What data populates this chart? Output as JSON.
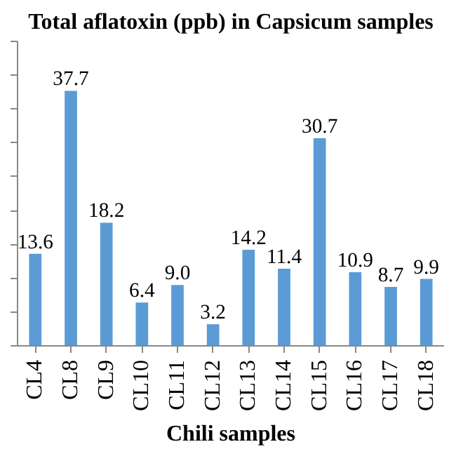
{
  "chart_data": {
    "type": "bar",
    "title": "Total aflatoxin (ppb) in Capsicum samples",
    "xlabel": "Chili samples",
    "categories": [
      "CL4",
      "CL8",
      "CL9",
      "CL10",
      "CL11",
      "CL12",
      "CL13",
      "CL14",
      "CL15",
      "CL16",
      "CL17",
      "CL18"
    ],
    "values": [
      13.6,
      37.7,
      18.2,
      6.4,
      9.0,
      3.2,
      14.2,
      11.4,
      30.7,
      10.9,
      8.7,
      9.9
    ],
    "value_labels": [
      "13.6",
      "37.7",
      "18.2",
      "6.4",
      "9.0",
      "3.2",
      "14.2",
      "11.4",
      "30.7",
      "10.9",
      "8.7",
      "9.9"
    ],
    "color": "#5b9bd5",
    "ylim": [
      0,
      45
    ],
    "yticks": [
      {
        "value": 0,
        "label": null
      },
      {
        "value": 5,
        "label": null
      },
      {
        "value": 10,
        "label": null
      },
      {
        "value": 15,
        "label": null
      },
      {
        "value": 20,
        "label": null
      },
      {
        "value": 25,
        "label": null
      },
      {
        "value": 30,
        "label": null
      },
      {
        "value": 35,
        "label": null
      },
      {
        "value": 40,
        "label": null
      },
      {
        "value": 45,
        "label": null
      }
    ],
    "tick_labels": "x",
    "grid": false
  }
}
